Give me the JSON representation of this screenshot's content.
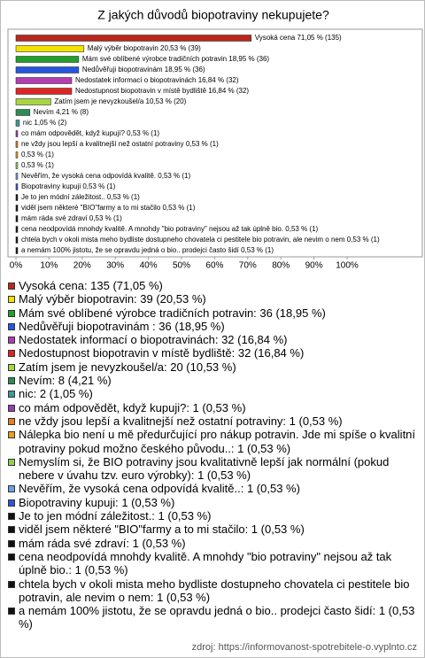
{
  "chart_data": {
    "type": "bar",
    "orientation": "horizontal",
    "title": "Z jakých důvodů biopotraviny nekupujete?",
    "values": [
      71.05,
      20.53,
      18.95,
      18.95,
      16.84,
      16.84,
      10.53,
      4.21,
      1.05,
      0.53,
      0.53,
      0.53,
      0.53,
      0.53,
      0.53,
      0.53,
      0.53,
      0.53,
      0.53,
      0.53,
      0.53
    ],
    "value_labels": [
      "Vysoká cena 71,05 % (135)",
      "Malý výběr biopotravin 20,53 % (39)",
      "Mám své oblíbené výrobce tradičních potravin 18,95 % (36)",
      "Nedůvěřuji biopotravinám  18,95 % (36)",
      "Nedostatek informací o biopotravinách 16,84 % (32)",
      "Nedostupnost biopotravin v místě bydliště 16,84 % (32)",
      "Zatím jsem je nevyzkoušel/a 10,53 % (20)",
      "Nevím 4,21 % (8)",
      "nic 1,05 % (2)",
      "co mám odpovědět, když kupují? 0,53 % (1)",
      "ne vždy jsou lepší a kvalitnejší než ostatní potraviny 0,53 % (1)",
      "0,53 % (1)",
      "0,53 % (1)",
      "Nevěřím, že vysoká cena odpovídá kvalitě. 0,53 % (1)",
      "Biopotraviny kupuji 0,53 % (1)",
      "Je to jen módní záležitost.. 0,53 % (1)",
      "viděl jsem některé  \"BIO\"farmy  a to mi stačilo 0,53 % (1)",
      "mám ráda své zdraví 0,53 % (1)",
      "cena neodpovídá mnohdy kvalitě. A mnohdy \"bio potraviny\" nejsou až tak úplně bio. 0,53 % (1)",
      "chtela bych v okoli mista meho bydliste dostupneho chovatela ci pestitele bio potravin, ale nevim o nem 0,53 % (1)",
      "a nemám 100% jistotu, že se opravdu jedná o bio.. prodejci často šidí 0,53 % (1)"
    ],
    "legend_labels": [
      "Vysoká cena: 135 (71,05 %)",
      "Malý výběr biopotravin: 39 (20,53 %)",
      "Mám své oblíbené výrobce tradičních potravin: 36 (18,95 %)",
      "Nedůvěřuji biopotravinám : 36 (18,95 %)",
      "Nedostatek informací o biopotravinách: 32 (16,84 %)",
      "Nedostupnost biopotravin v místě bydliště: 32 (16,84 %)",
      "Zatím jsem je nevyzkoušel/a: 20 (10,53 %)",
      "Nevím: 8 (4,21 %)",
      "nic: 2 (1,05 %)",
      "co mám odpovědět, když kupuji?: 1 (0,53 %)",
      "ne vždy jsou lepší a kvalitnejší než ostatní potraviny: 1 (0,53 %)",
      "Nálepka bio není u mě předurčující pro nákup potravin. Jde mi spíše o kvalitní potraviny pokud možno českého původu..: 1 (0,53 %)",
      "Nemyslím si, že BIO potraviny jsou kvalitativně lepší jak normální (pokud nebere v úvahu tzv. euro výrobky): 1 (0,53 %)",
      "Nevěřím, že vysoká cena odpovídá kvalitě..: 1 (0,53 %)",
      "Biopotraviny kupuji: 1 (0,53 %)",
      "Je to jen módní záležitost.: 1 (0,53 %)",
      "viděl jsem některé  \"BIO\"farmy  a to mi stačilo: 1 (0,53 %)",
      "mám ráda své zdraví: 1 (0,53 %)",
      "cena neodpovídá mnohdy kvalitě. A mnohdy \"bio potraviny\" nejsou až tak úplně bio.: 1 (0,53 %)",
      "chtela bych v okoli mista meho bydliste dostupneho chovatela ci pestitele bio potravin, ale nevim o nem: 1 (0,53 %)",
      "a nemám 100% jistotu, že se opravdu jedná o bio.. prodejci často šidí: 1 (0,53 %)"
    ],
    "colors": [
      "#b8281c",
      "#f2e200",
      "#22a02a",
      "#2456e0",
      "#b43cb4",
      "#e02424",
      "#a8d640",
      "#2e8b57",
      "#3e9a9a",
      "#8e44ad",
      "#e67e22",
      "#e8a020",
      "#8fd14f",
      "#6ea0e0",
      "#3355cc",
      "#111111",
      "#111111",
      "#111111",
      "#111111",
      "#111111",
      "#111111"
    ],
    "xlim": [
      0,
      100
    ],
    "xticks": [
      {
        "value": 0,
        "label": "0%"
      },
      {
        "value": 10,
        "label": "10%"
      },
      {
        "value": 20,
        "label": "20%"
      },
      {
        "value": 30,
        "label": "30%"
      },
      {
        "value": 40,
        "label": "40%"
      },
      {
        "value": 50,
        "label": "50%"
      },
      {
        "value": 60,
        "label": "60%"
      },
      {
        "value": 70,
        "label": "70%"
      },
      {
        "value": 80,
        "label": "80%"
      },
      {
        "value": 90,
        "label": "90%"
      },
      {
        "value": 100,
        "label": "100%"
      }
    ],
    "source": "zdroj: https://informovanost-spotrebitele-o.vyplnto.cz"
  }
}
